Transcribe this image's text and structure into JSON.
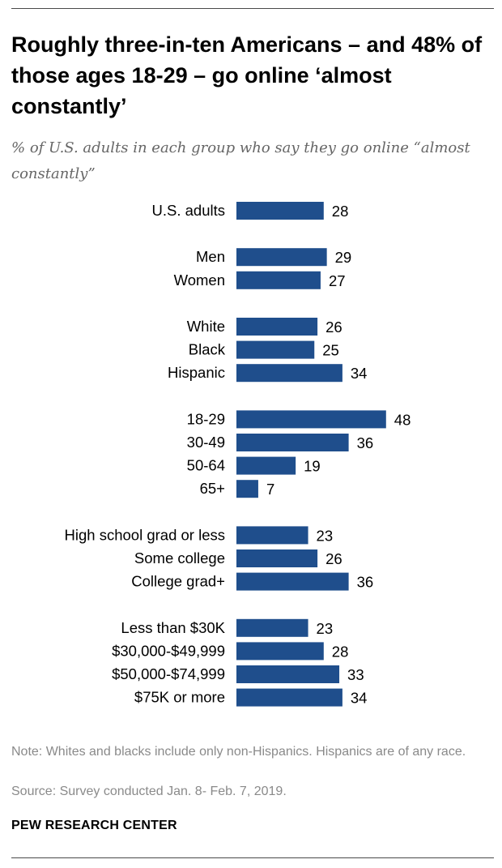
{
  "title": "Roughly three-in-ten Americans – and 48% of those ages 18-29 – go online ‘almost constantly’",
  "subtitle": "% of U.S. adults in each group who say they go online “almost constantly”",
  "chart_data": {
    "type": "bar",
    "orientation": "horizontal",
    "title": "Roughly three-in-ten Americans – and 48% of those ages 18-29 – go online ‘almost constantly’",
    "xlabel": "",
    "ylabel": "",
    "xlim": [
      0,
      100
    ],
    "bar_color": "#1f4e8c",
    "groups": [
      {
        "categories": [
          "U.S. adults"
        ],
        "values": [
          28
        ]
      },
      {
        "categories": [
          "Men",
          "Women"
        ],
        "values": [
          29,
          27
        ]
      },
      {
        "categories": [
          "White",
          "Black",
          "Hispanic"
        ],
        "values": [
          26,
          25,
          34
        ]
      },
      {
        "categories": [
          "18-29",
          "30-49",
          "50-64",
          "65+"
        ],
        "values": [
          48,
          36,
          19,
          7
        ]
      },
      {
        "categories": [
          "High school grad or less",
          "Some college",
          "College grad+"
        ],
        "values": [
          23,
          26,
          36
        ]
      },
      {
        "categories": [
          "Less than $30K",
          "$30,000-$49,999",
          "$50,000-$74,999",
          "$75K or more"
        ],
        "values": [
          23,
          28,
          33,
          34
        ]
      }
    ]
  },
  "notes": {
    "note": "Note: Whites and blacks include only non-Hispanics. Hispanics are of any race.",
    "source": "Source: Survey conducted Jan. 8- Feb. 7, 2019."
  },
  "brand": "PEW RESEARCH CENTER"
}
